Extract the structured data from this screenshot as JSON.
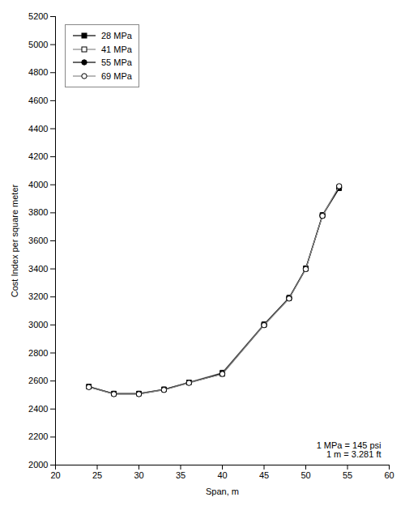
{
  "chart_data": {
    "type": "line",
    "xlabel": "Span, m",
    "ylabel": "Cost Index per square meter",
    "xlim": [
      20,
      60
    ],
    "ylim": [
      2000,
      5200
    ],
    "xticks": [
      20,
      25,
      30,
      35,
      40,
      45,
      50,
      55,
      60
    ],
    "yticks": [
      2000,
      2200,
      2400,
      2600,
      2800,
      3000,
      3200,
      3400,
      3600,
      3800,
      4000,
      4200,
      4400,
      4600,
      4800,
      5000,
      5200
    ],
    "annotation": "1 MPa = 145 psi\n1 m = 3.281 ft",
    "x": [
      24,
      27,
      30,
      33,
      36,
      40,
      45,
      48,
      50,
      52,
      54
    ],
    "series": [
      {
        "name": "28 MPa",
        "color": "#000000",
        "marker": "square",
        "values": [
          2560,
          2510,
          2510,
          2540,
          2590,
          2650,
          3000,
          3190,
          3400,
          3780,
          3975
        ]
      },
      {
        "name": "41 MPa",
        "color": "#888888",
        "marker": "square-open",
        "values": [
          2560,
          2510,
          2510,
          2540,
          2590,
          2660,
          3005,
          3195,
          3405,
          3785,
          3985
        ]
      },
      {
        "name": "55 MPa",
        "color": "#000000",
        "marker": "circle",
        "values": [
          2558,
          2508,
          2508,
          2538,
          2588,
          2655,
          3002,
          3192,
          3402,
          3782,
          3980
        ]
      },
      {
        "name": "69 MPa",
        "color": "#888888",
        "marker": "circle-open",
        "values": [
          2556,
          2506,
          2506,
          2536,
          2586,
          2650,
          2998,
          3188,
          3398,
          3778,
          3990
        ]
      }
    ],
    "legend": "upper left",
    "grid": false
  }
}
